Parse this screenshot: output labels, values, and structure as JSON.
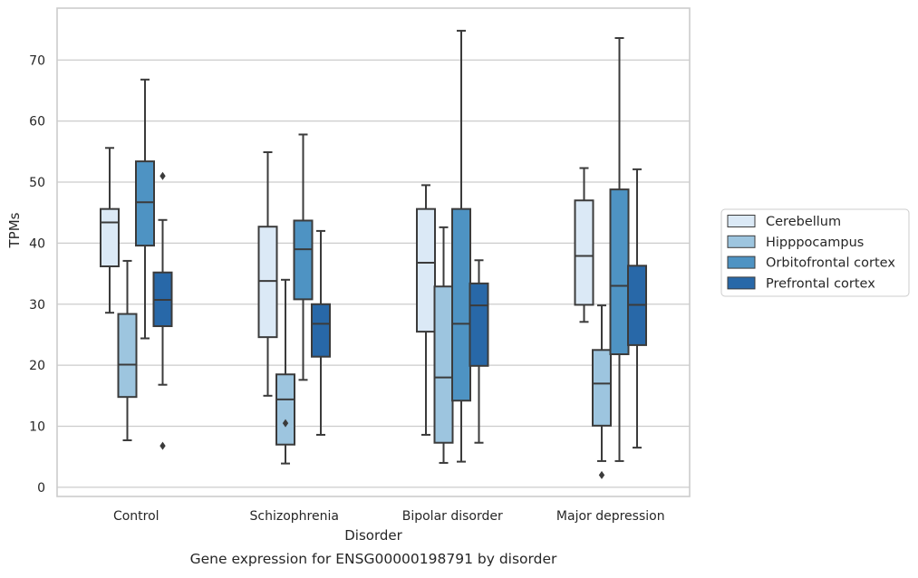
{
  "chart_data": {
    "type": "box",
    "caption": "Gene expression for ENSG00000198791 by disorder",
    "xlabel": "Disorder",
    "ylabel": "TPMs",
    "ylim": [
      -1.5,
      78.5
    ],
    "yticks": [
      0,
      10,
      20,
      30,
      40,
      50,
      60,
      70
    ],
    "grid": "horizontal",
    "legend_position": "right",
    "categories": [
      "Control",
      "Schizophrenia",
      "Bipolar disorder",
      "Major depression"
    ],
    "series": [
      {
        "name": "Cerebellum",
        "color": "#dbe9f6",
        "boxes": [
          {
            "whislo": 28.6,
            "q1": 36.2,
            "med": 43.4,
            "q3": 45.6,
            "whishi": 55.6,
            "fliers": []
          },
          {
            "whislo": 15.0,
            "q1": 24.6,
            "med": 33.8,
            "q3": 42.7,
            "whishi": 54.9,
            "fliers": []
          },
          {
            "whislo": 8.6,
            "q1": 25.5,
            "med": 36.8,
            "q3": 45.6,
            "whishi": 49.5,
            "fliers": []
          },
          {
            "whislo": 27.1,
            "q1": 29.9,
            "med": 37.9,
            "q3": 47.0,
            "whishi": 52.3,
            "fliers": []
          }
        ]
      },
      {
        "name": "Hipppocampus",
        "color": "#9dc5df",
        "boxes": [
          {
            "whislo": 7.7,
            "q1": 14.8,
            "med": 20.1,
            "q3": 28.4,
            "whishi": 37.1,
            "fliers": []
          },
          {
            "whislo": 3.9,
            "q1": 7.0,
            "med": 14.4,
            "q3": 18.5,
            "whishi": 34.0,
            "fliers": [
              10.5
            ]
          },
          {
            "whislo": 4.0,
            "q1": 7.3,
            "med": 18.0,
            "q3": 32.9,
            "whishi": 42.6,
            "fliers": []
          },
          {
            "whislo": 4.3,
            "q1": 10.1,
            "med": 17.0,
            "q3": 22.5,
            "whishi": 29.8,
            "fliers": [
              2.0
            ]
          }
        ]
      },
      {
        "name": "Orbitofrontal cortex",
        "color": "#4e93c3",
        "boxes": [
          {
            "whislo": 24.4,
            "q1": 39.6,
            "med": 46.7,
            "q3": 53.4,
            "whishi": 66.8,
            "fliers": []
          },
          {
            "whislo": 17.6,
            "q1": 30.8,
            "med": 39.0,
            "q3": 43.7,
            "whishi": 57.8,
            "fliers": []
          },
          {
            "whislo": 4.2,
            "q1": 14.2,
            "med": 26.8,
            "q3": 45.6,
            "whishi": 74.8,
            "fliers": []
          },
          {
            "whislo": 4.3,
            "q1": 21.8,
            "med": 33.0,
            "q3": 48.8,
            "whishi": 73.6,
            "fliers": []
          }
        ]
      },
      {
        "name": "Prefrontal cortex",
        "color": "#2868a8",
        "boxes": [
          {
            "whislo": 16.8,
            "q1": 26.4,
            "med": 30.7,
            "q3": 35.2,
            "whishi": 43.8,
            "fliers": [
              51.0,
              6.8
            ]
          },
          {
            "whislo": 8.6,
            "q1": 21.4,
            "med": 26.8,
            "q3": 30.0,
            "whishi": 42.0,
            "fliers": []
          },
          {
            "whislo": 7.3,
            "q1": 19.9,
            "med": 29.8,
            "q3": 33.4,
            "whishi": 37.2,
            "fliers": []
          },
          {
            "whislo": 6.5,
            "q1": 23.3,
            "med": 29.9,
            "q3": 36.3,
            "whishi": 52.1,
            "fliers": []
          }
        ]
      }
    ]
  }
}
